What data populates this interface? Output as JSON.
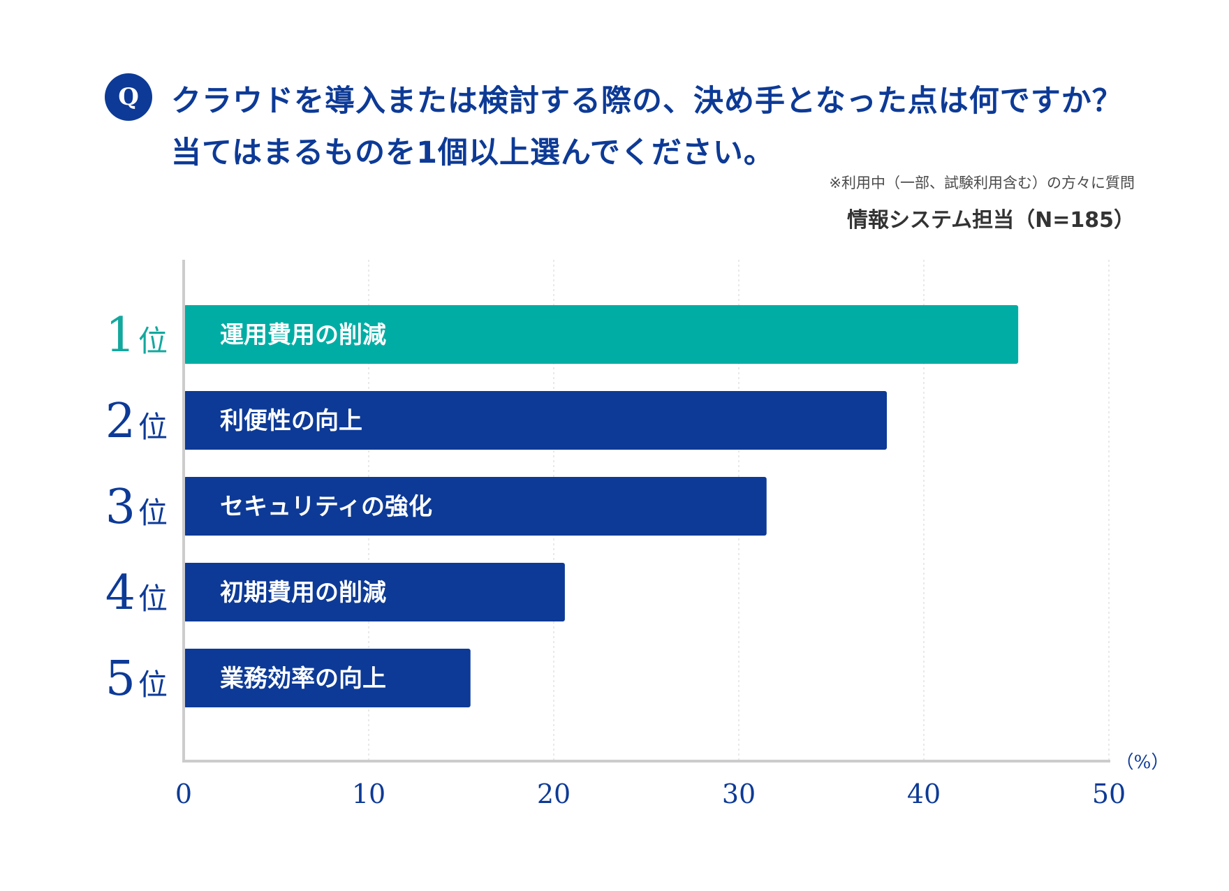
{
  "header": {
    "badge": "Q",
    "question_line1": "クラウドを導入または検討する際の、決め手となった点は何ですか？",
    "question_line2": "当てはまるものを1個以上選んでください。",
    "note": "※利用中（一部、試験利用含む）の方々に質問",
    "sample": "情報システム担当（N=185）"
  },
  "chart_data": {
    "type": "bar",
    "orientation": "horizontal",
    "categories": [
      "運用費用の削減",
      "利便性の向上",
      "セキュリティの強化",
      "初期費用の削減",
      "業務効率の向上"
    ],
    "ranks": [
      {
        "num": "1",
        "suffix": "位"
      },
      {
        "num": "2",
        "suffix": "位"
      },
      {
        "num": "3",
        "suffix": "位"
      },
      {
        "num": "4",
        "suffix": "位"
      },
      {
        "num": "5",
        "suffix": "位"
      }
    ],
    "values": [
      45.1,
      38.0,
      31.5,
      20.6,
      15.5
    ],
    "xlim": [
      0,
      50
    ],
    "xticks": [
      0,
      10,
      20,
      30,
      40,
      50
    ],
    "unit": "（%）",
    "grid": true,
    "colors": {
      "highlight": "#00ada4",
      "bar": "#0d3a96",
      "axis": "#cccccc",
      "grid": "#e2e2e2",
      "rank_highlight": "#13a89e",
      "rank": "#0d3a96"
    }
  }
}
